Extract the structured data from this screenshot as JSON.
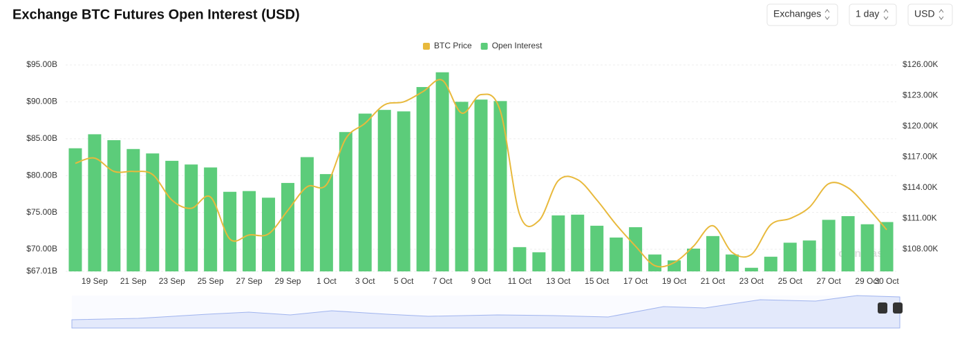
{
  "header": {
    "title": "Exchange BTC Futures Open Interest (USD)",
    "controls": [
      "Exchanges",
      "1 day",
      "USD"
    ],
    "watermark": "coinglass"
  },
  "chart_data": {
    "type": "bar",
    "categories": [
      null,
      "19 Sep",
      null,
      "21 Sep",
      null,
      "23 Sep",
      null,
      "25 Sep",
      null,
      "27 Sep",
      null,
      "29 Sep",
      null,
      "1 Oct",
      null,
      "3 Oct",
      null,
      "5 Oct",
      null,
      "7 Oct",
      null,
      "9 Oct",
      null,
      "11 Oct",
      null,
      "13 Oct",
      null,
      "15 Oct",
      null,
      "17 Oct",
      null,
      "19 Oct",
      null,
      "21 Oct",
      null,
      "23 Oct",
      null,
      "25 Oct",
      null,
      "27 Oct",
      null,
      "29 Oct",
      "30 Oct"
    ],
    "series": [
      {
        "name": "Open Interest",
        "color": "#5ccc7a",
        "type": "bar",
        "axis": "y",
        "values": [
          83.7,
          85.6,
          84.8,
          83.6,
          83.0,
          82.0,
          81.5,
          81.1,
          77.8,
          77.9,
          77.0,
          79.0,
          82.5,
          80.2,
          85.9,
          88.4,
          88.9,
          88.7,
          92.0,
          94.0,
          90.0,
          90.3,
          90.1,
          70.3,
          69.6,
          74.6,
          74.7,
          73.2,
          71.6,
          73.0,
          69.3,
          68.5,
          70.1,
          71.8,
          69.3,
          67.5,
          69.0,
          70.9,
          71.2,
          74.0,
          74.5,
          73.4,
          73.7
        ]
      },
      {
        "name": "BTC Price",
        "color": "#e8b93c",
        "type": "line",
        "axis": "y2",
        "values": [
          116.4,
          116.9,
          115.6,
          115.6,
          115.3,
          112.8,
          112.0,
          113.1,
          109.0,
          109.4,
          109.5,
          111.8,
          114.1,
          114.3,
          118.8,
          120.3,
          122.1,
          122.4,
          123.4,
          124.5,
          121.3,
          123.1,
          121.5,
          111.4,
          110.8,
          114.7,
          114.8,
          112.8,
          110.4,
          108.3,
          106.4,
          106.7,
          108.3,
          110.3,
          107.7,
          107.5,
          110.4,
          111.0,
          112.1,
          114.4,
          114.0,
          112.1,
          109.9
        ]
      }
    ],
    "legend_order": [
      1,
      0
    ],
    "ylim": [
      67.01,
      95
    ],
    "yticks": [
      {
        "value": 67.01,
        "label": "$67.01B"
      },
      {
        "value": 70,
        "label": "$70.00B"
      },
      {
        "value": 75,
        "label": "$75.00B"
      },
      {
        "value": 80,
        "label": "$80.00B"
      },
      {
        "value": 85,
        "label": "$85.00B"
      },
      {
        "value": 90,
        "label": "$90.00B"
      },
      {
        "value": 95,
        "label": "$95.00B"
      }
    ],
    "y2lim": [
      105.84,
      126
    ],
    "y2ticks": [
      {
        "value": 108,
        "label": "$108.00K"
      },
      {
        "value": 111,
        "label": "$111.00K"
      },
      {
        "value": 114,
        "label": "$114.00K"
      },
      {
        "value": 117,
        "label": "$117.00K"
      },
      {
        "value": 120,
        "label": "$120.00K"
      },
      {
        "value": 123,
        "label": "$123.00K"
      },
      {
        "value": 126,
        "label": "$126.00K"
      }
    ],
    "grid": true
  }
}
